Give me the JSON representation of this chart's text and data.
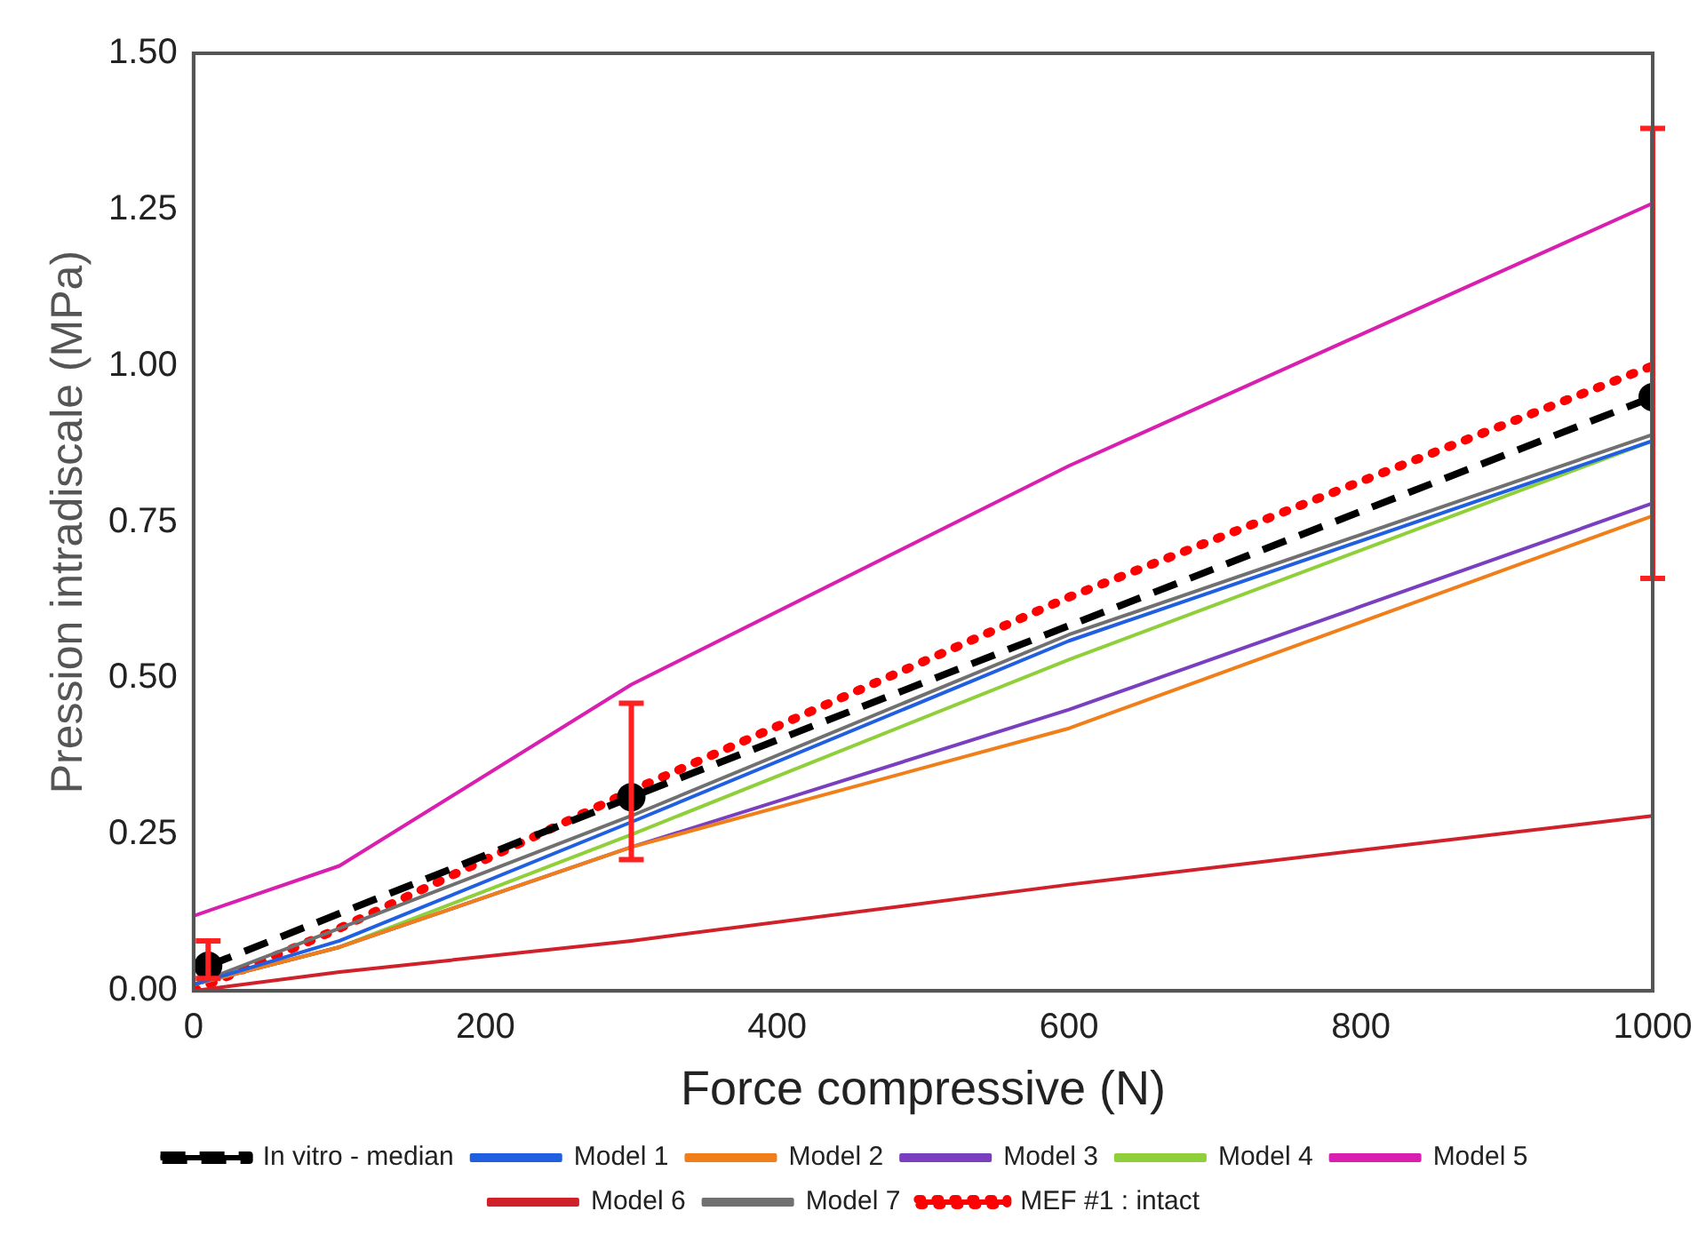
{
  "chart_data": {
    "type": "line",
    "xlabel": "Force compressive (N)",
    "ylabel": "Pression intradiscale (MPa)",
    "xlim": [
      0,
      1000
    ],
    "xticks": [
      0,
      200,
      400,
      600,
      800,
      1000
    ],
    "ylim": [
      0,
      1.5
    ],
    "yticks": [
      {
        "value": 0,
        "label": "0.00"
      },
      {
        "value": 0.25,
        "label": "0.25"
      },
      {
        "value": 0.5,
        "label": "0.50"
      },
      {
        "value": 0.75,
        "label": "0.75"
      },
      {
        "value": 1,
        "label": "1.00"
      },
      {
        "value": 1.25,
        "label": "1.25"
      },
      {
        "value": 1.5,
        "label": "1.50"
      }
    ],
    "grid": false,
    "legend": "bottom",
    "marker": "none",
    "line_style": "solid",
    "series": [
      {
        "name": "In vitro - median",
        "color": "#000000",
        "line_style": "dashed",
        "marker": "circle",
        "x": [
          10,
          300,
          1000
        ],
        "values": [
          0.04,
          0.31,
          0.95
        ],
        "errors": [
          [
            0.02,
            0.08
          ],
          [
            0.21,
            0.46
          ],
          [
            0.66,
            1.38
          ]
        ]
      },
      {
        "name": "Model 1",
        "color": "#1f5fe0",
        "x": [
          0,
          100,
          300,
          600,
          1000
        ],
        "values": [
          0.01,
          0.08,
          0.27,
          0.56,
          0.88
        ]
      },
      {
        "name": "Model 2",
        "color": "#f07f1a",
        "x": [
          0,
          100,
          300,
          600,
          1000
        ],
        "values": [
          0.01,
          0.07,
          0.23,
          0.42,
          0.76
        ]
      },
      {
        "name": "Model 3",
        "color": "#7a3fbf",
        "x": [
          0,
          100,
          300,
          600,
          1000
        ],
        "values": [
          0.01,
          0.07,
          0.23,
          0.45,
          0.78
        ]
      },
      {
        "name": "Model 4",
        "color": "#8fcf3a",
        "x": [
          0,
          100,
          300,
          600,
          1000
        ],
        "values": [
          0.01,
          0.07,
          0.25,
          0.53,
          0.88
        ]
      },
      {
        "name": "Model 5",
        "color": "#d81fb0",
        "x": [
          0,
          100,
          300,
          600,
          1000
        ],
        "values": [
          0.12,
          0.2,
          0.49,
          0.84,
          1.26
        ]
      },
      {
        "name": "Model 6",
        "color": "#d0202a",
        "x": [
          0,
          100,
          300,
          600,
          1000
        ],
        "values": [
          0,
          0.03,
          0.08,
          0.17,
          0.28
        ]
      },
      {
        "name": "Model 7",
        "color": "#707070",
        "x": [
          0,
          300,
          600,
          1000
        ],
        "values": [
          0.01,
          0.28,
          0.57,
          0.89
        ]
      },
      {
        "name": "MEF #1 : intact",
        "color": "#ff0000",
        "line_style": "dotted",
        "x": [
          0,
          100,
          300,
          600,
          1000
        ],
        "values": [
          0,
          0.1,
          0.32,
          0.63,
          1.0
        ]
      }
    ]
  }
}
